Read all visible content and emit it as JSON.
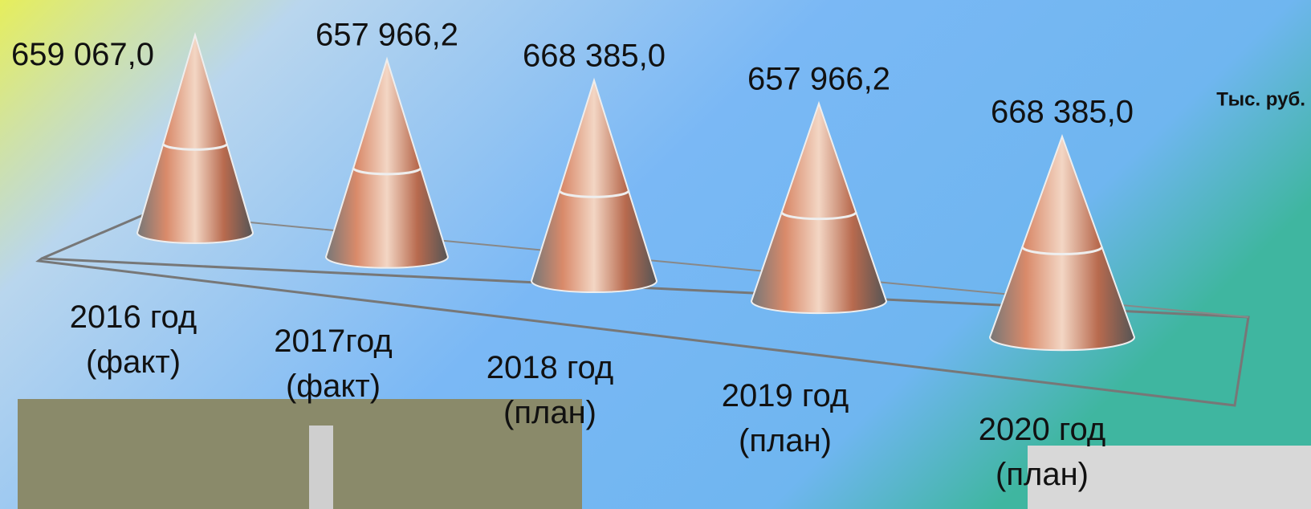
{
  "chart_data": {
    "type": "cone",
    "unit_label": "Тыс. руб.",
    "categories": [
      "2016 год (факт)",
      "2017год (факт)",
      "2018 год (план)",
      "2019 год (план)",
      "2020 год (план)"
    ],
    "values": [
      659067.0,
      657966.2,
      668385.0,
      657966.2,
      668385.0
    ],
    "value_labels": [
      "659 067,0",
      "657 966,2",
      "668 385,0",
      "657 966,2",
      "668 385,0"
    ]
  }
}
